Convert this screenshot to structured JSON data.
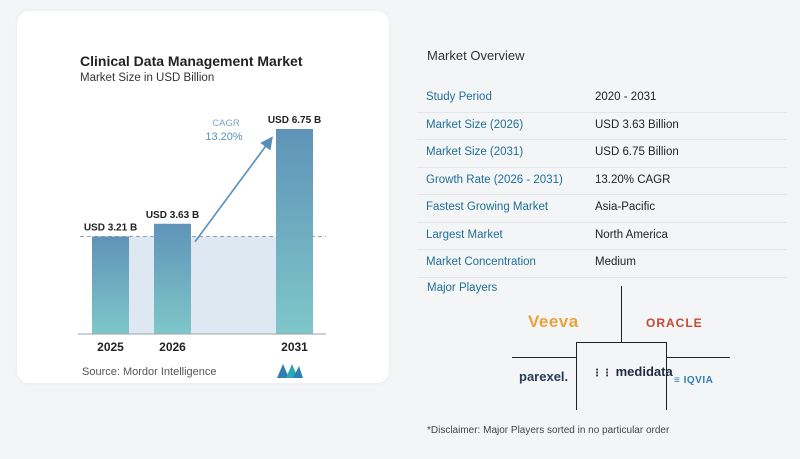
{
  "chart_data": {
    "type": "bar",
    "title": "Clinical Data Management Market",
    "subtitle": "Market Size in USD Billion",
    "categories": [
      "2025",
      "2026",
      "2031"
    ],
    "values": [
      3.21,
      3.63,
      6.75
    ],
    "value_labels": [
      "USD 3.21 B",
      "USD 3.63 B",
      "USD 6.75 B"
    ],
    "cagr_label": "CAGR",
    "cagr_value": "13.20%",
    "ylim": [
      0,
      6.75
    ],
    "colors": {
      "bar_top": "#5f93b8",
      "bar_bottom": "#7ec7c9",
      "band": "#dde8f2",
      "arrow": "#5a8fb8"
    }
  },
  "source": "Source:  Mordor Intelligence",
  "overview": {
    "title": "Market Overview",
    "rows": [
      {
        "key": "Study Period",
        "value": "2020 - 2031"
      },
      {
        "key": "Market Size (2026)",
        "value": "USD 3.63 Billion"
      },
      {
        "key": "Market Size (2031)",
        "value": "USD 6.75 Billion"
      },
      {
        "key": "Growth Rate (2026 - 2031)",
        "value": "13.20% CAGR"
      },
      {
        "key": "Fastest Growing Market",
        "value": "Asia-Pacific"
      },
      {
        "key": "Largest Market",
        "value": "North America"
      },
      {
        "key": "Market Concentration",
        "value": "Medium"
      }
    ]
  },
  "players": {
    "title": "Major Players",
    "names": [
      "Veeva",
      "ORACLE",
      "parexel.",
      "medidata",
      "IQVIA"
    ]
  },
  "disclaimer": "*Disclaimer: Major Players sorted in no particular order"
}
